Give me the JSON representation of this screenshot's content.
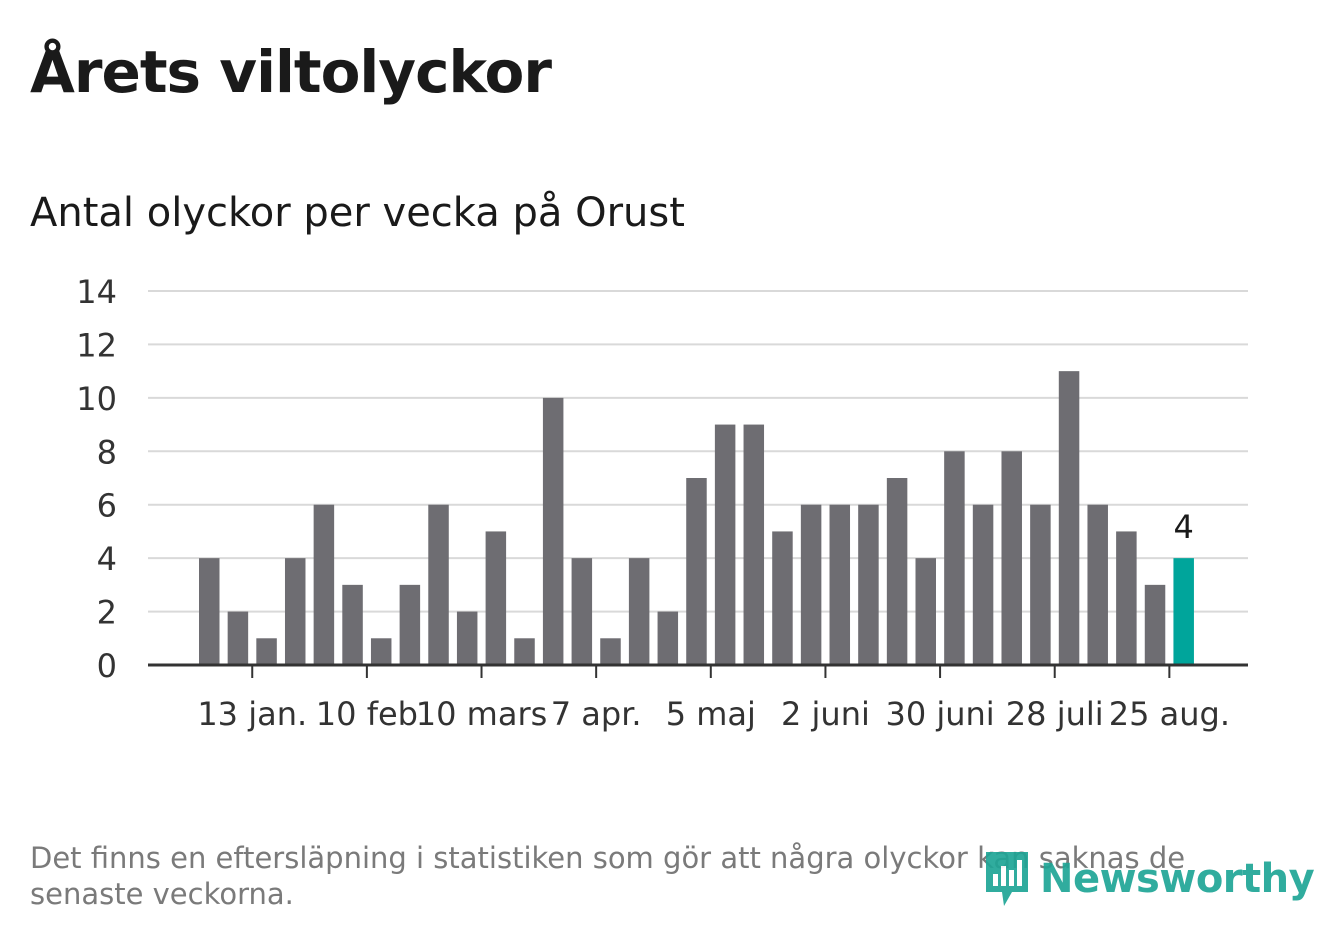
{
  "title": "Årets viltolyckor",
  "subtitle": "Antal olyckor per vecka på Orust",
  "footnote": "Det finns en eftersläpning i statistiken som gör att några olyckor kan saknas de senaste veckorna.",
  "brand": {
    "name": "Newsworthy",
    "icon": "newsworthy-logo-icon"
  },
  "colors": {
    "bar": "#6e6d72",
    "highlight": "#00a59b",
    "grid": "#d9d9d9",
    "axis": "#333333",
    "brand": "#1fa596"
  },
  "chart_data": {
    "type": "bar",
    "title": "Antal olyckor per vecka på Orust",
    "xlabel": "",
    "ylabel": "",
    "ylim": [
      0,
      14
    ],
    "yticks": [
      0,
      2,
      4,
      6,
      8,
      10,
      12,
      14
    ],
    "grid": true,
    "values": [
      4,
      2,
      1,
      4,
      6,
      3,
      1,
      3,
      6,
      2,
      5,
      1,
      10,
      4,
      1,
      4,
      2,
      7,
      9,
      9,
      5,
      6,
      6,
      6,
      7,
      4,
      8,
      6,
      8,
      6,
      11,
      6,
      5,
      3,
      4
    ],
    "xtick_labels": [
      "13 jan.",
      "10 feb",
      "10 mars",
      "7 apr.",
      "5 maj",
      "2 juni",
      "30 juni",
      "28 juli",
      "25 aug."
    ],
    "xtick_bar_index": [
      1.5,
      5.5,
      9.5,
      13.5,
      17.5,
      21.5,
      25.5,
      29.5,
      33.5
    ],
    "highlight_index": 34,
    "highlight_label": "4"
  }
}
